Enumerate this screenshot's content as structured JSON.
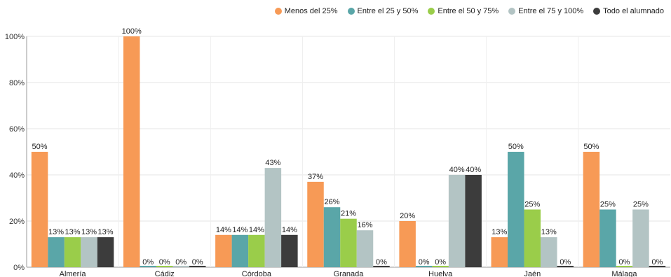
{
  "chart_data": {
    "type": "bar",
    "categories": [
      "Almería",
      "Cádiz",
      "Córdoba",
      "Granada",
      "Huelva",
      "Jaén",
      "Málaga"
    ],
    "series": [
      {
        "name": "Menos del 25%",
        "color": "#f79a56",
        "values": [
          50,
          100,
          14,
          37,
          20,
          13,
          50
        ]
      },
      {
        "name": "Entre el 25 y 50%",
        "color": "#5aa6a8",
        "values": [
          13,
          0,
          14,
          26,
          0,
          50,
          25
        ]
      },
      {
        "name": "Entre el 50 y 75%",
        "color": "#9acd4a",
        "values": [
          13,
          0,
          14,
          21,
          0,
          25,
          0
        ]
      },
      {
        "name": "Entre el 75 y 100%",
        "color": "#b3c4c4",
        "values": [
          13,
          0,
          43,
          16,
          40,
          13,
          25
        ]
      },
      {
        "name": "Todo el alumnado",
        "color": "#3c3c3c",
        "values": [
          13,
          0,
          14,
          0,
          40,
          0,
          0
        ]
      }
    ],
    "ylim": [
      0,
      100
    ],
    "yticks": [
      "0%",
      "20%",
      "40%",
      "60%",
      "80%",
      "100%"
    ],
    "value_suffix": "%",
    "grid": true,
    "legend_position": "top-right"
  }
}
